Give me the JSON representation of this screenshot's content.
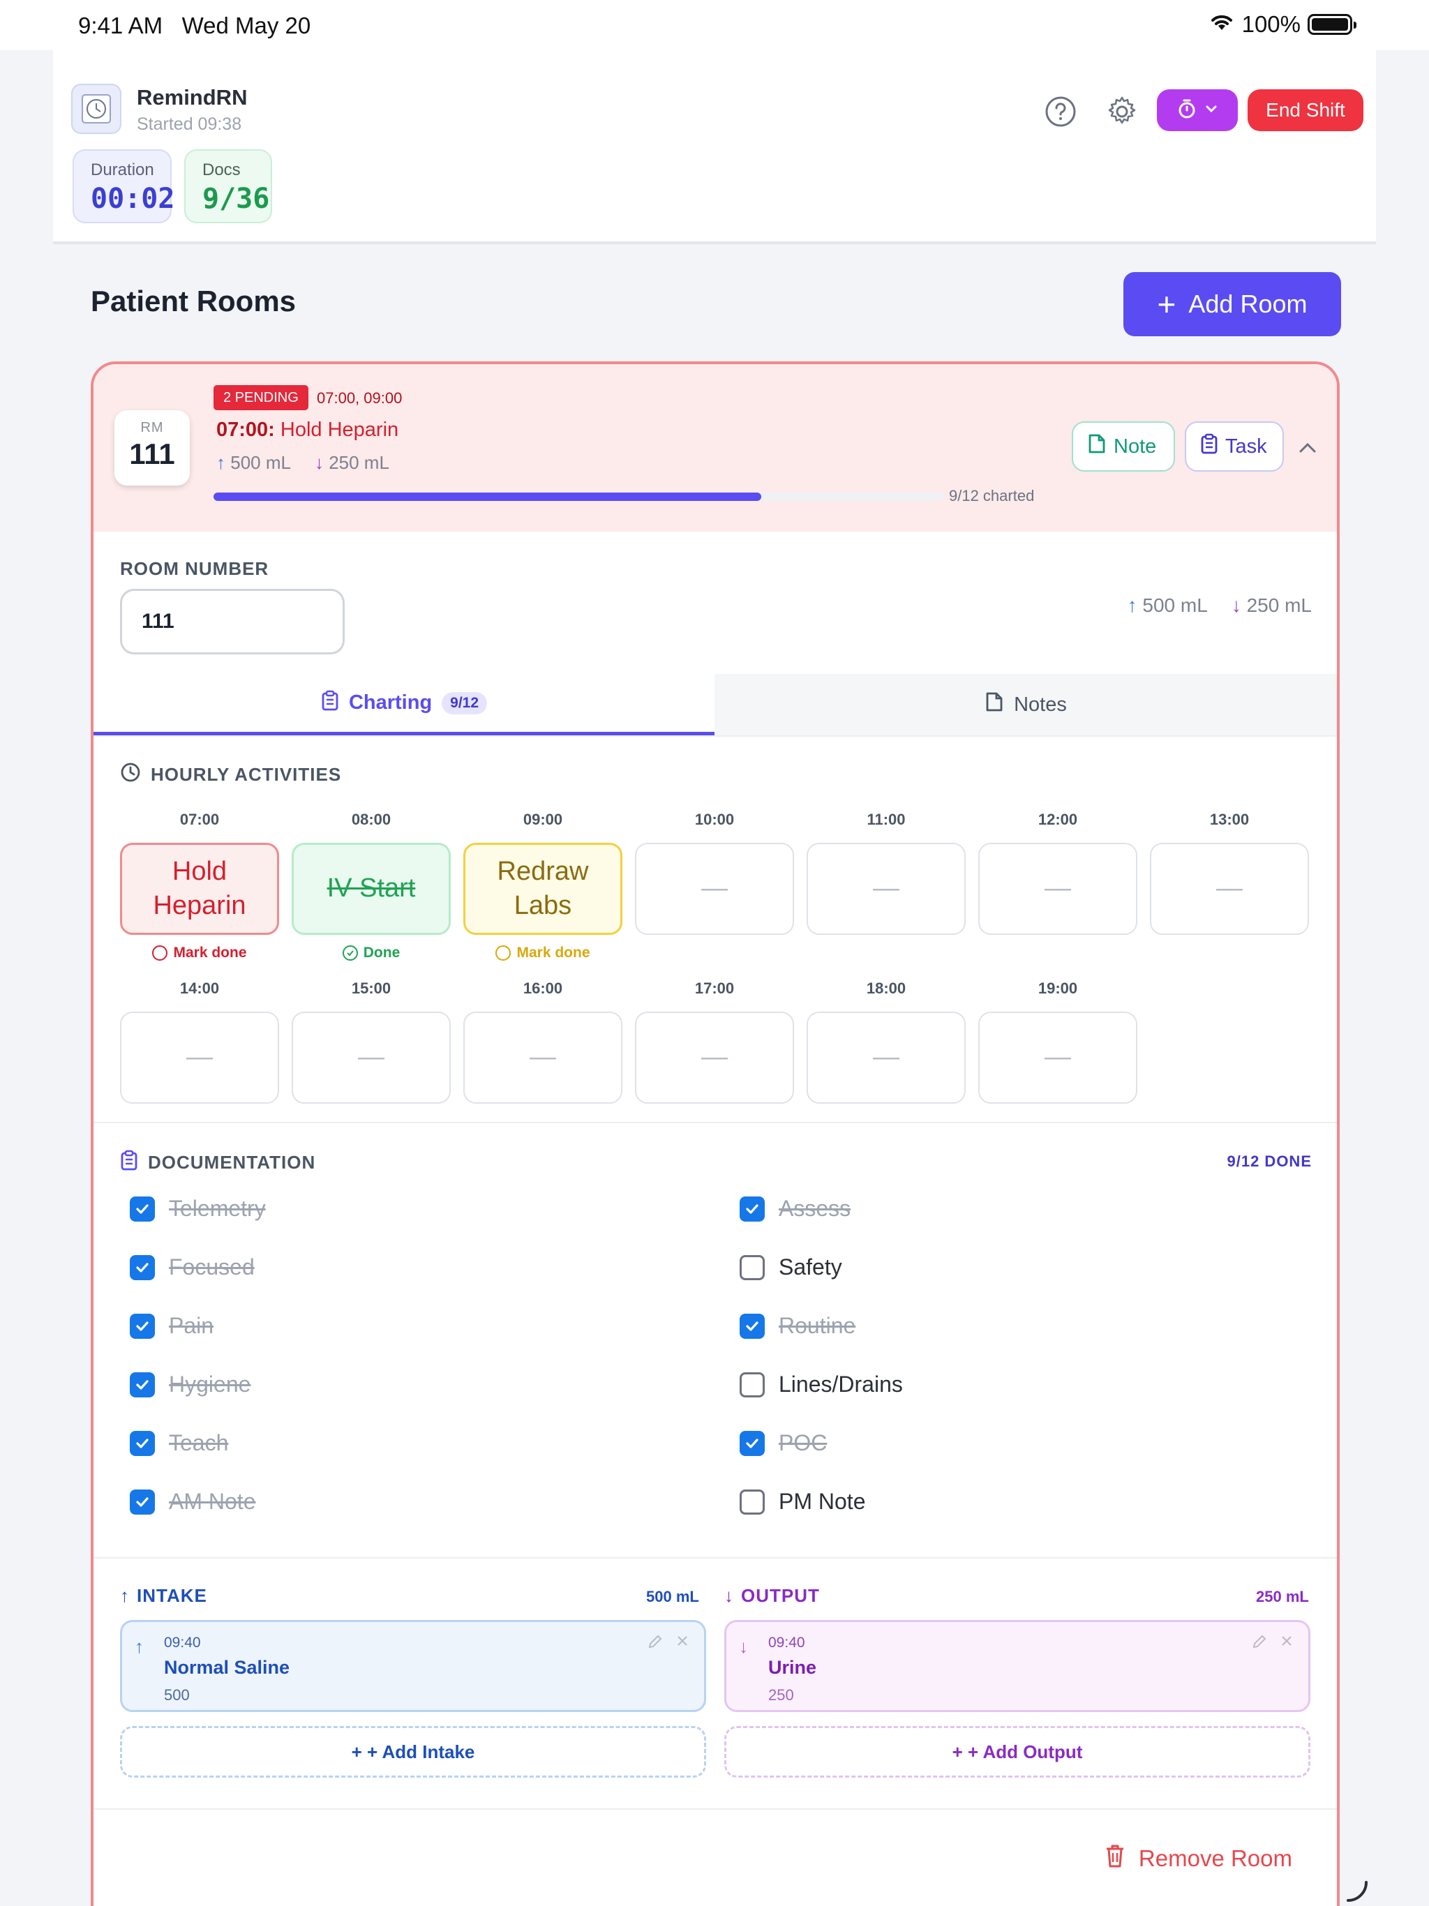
{
  "status_bar": {
    "time": "9:41 AM",
    "date": "Wed May 20",
    "battery": "100%"
  },
  "header": {
    "app_name": "RemindRN",
    "started": "Started 09:38",
    "duration_label": "Duration",
    "duration_value": "00:02",
    "docs_label": "Docs",
    "docs_value": "9/36",
    "end_shift_label": "End Shift",
    "icons": [
      "help-icon",
      "gear-icon",
      "stopwatch-icon",
      "chevron-down-icon"
    ]
  },
  "main": {
    "title": "Patient Rooms",
    "add_room_label": "Add Room"
  },
  "room": {
    "rm_label": "RM",
    "number": "111",
    "pending_badge": "2 PENDING",
    "pending_times": "07:00, 09:00",
    "next_time": "07:00:",
    "next_task": " Hold Heparin",
    "intake": "500 mL",
    "output": "250 mL",
    "progress_fraction": 0.75,
    "progress_label": "9/12 charted",
    "note_label": "Note",
    "task_label": "Task",
    "room_number_label": "ROOM NUMBER",
    "room_number_value": "111",
    "tabs": {
      "charting": "Charting",
      "charting_count": "9/12",
      "notes": "Notes"
    },
    "hourly_title": "HOURLY ACTIVITIES",
    "hours": [
      {
        "time": "07:00",
        "task": "Hold Heparin",
        "status": "pending",
        "mark": "Mark done",
        "color": "#d61f2e"
      },
      {
        "time": "08:00",
        "task": "IV Start",
        "status": "done",
        "mark": "Done",
        "color": "#1fa354"
      },
      {
        "time": "09:00",
        "task": "Redraw Labs",
        "status": "pending",
        "mark": "Mark done",
        "color": "#d9a90b"
      },
      {
        "time": "10:00",
        "task": "—"
      },
      {
        "time": "11:00",
        "task": "—"
      },
      {
        "time": "12:00",
        "task": "—"
      },
      {
        "time": "13:00",
        "task": "—"
      },
      {
        "time": "14:00",
        "task": "—"
      },
      {
        "time": "15:00",
        "task": "—"
      },
      {
        "time": "16:00",
        "task": "—"
      },
      {
        "time": "17:00",
        "task": "—"
      },
      {
        "time": "18:00",
        "task": "—"
      },
      {
        "time": "19:00",
        "task": "—"
      }
    ],
    "documentation_title": "DOCUMENTATION",
    "documentation_done": "9/12 DONE",
    "documentation": [
      {
        "label": "Telemetry",
        "checked": true
      },
      {
        "label": "Assess",
        "checked": true
      },
      {
        "label": "Focused",
        "checked": true
      },
      {
        "label": "Safety",
        "checked": false
      },
      {
        "label": "Pain",
        "checked": true
      },
      {
        "label": "Routine",
        "checked": true
      },
      {
        "label": "Hygiene",
        "checked": true
      },
      {
        "label": "Lines/Drains",
        "checked": false
      },
      {
        "label": "Teach",
        "checked": true
      },
      {
        "label": "POC",
        "checked": true
      },
      {
        "label": "AM Note",
        "checked": true
      },
      {
        "label": "PM Note",
        "checked": false
      }
    ],
    "intake_section": {
      "title": "INTAKE",
      "total": "500 mL",
      "entry": {
        "time": "09:40",
        "name": "Normal Saline",
        "amount": "500"
      },
      "add_label": "+ Add Intake"
    },
    "output_section": {
      "title": "OUTPUT",
      "total": "250 mL",
      "entry": {
        "time": "09:40",
        "name": "Urine",
        "amount": "250"
      },
      "add_label": "+ Add Output"
    },
    "remove_label": "Remove Room"
  },
  "colors": {
    "accent": "#5a4cf2",
    "danger": "#ef3340",
    "intake": "#1d4fb8",
    "output": "#8a2bc4"
  }
}
